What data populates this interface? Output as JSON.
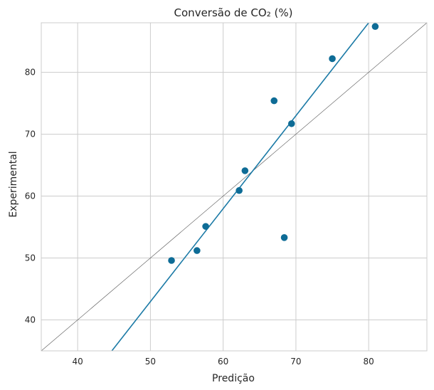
{
  "chart_data": {
    "type": "scatter",
    "title": "Conversão de CO₂ (%)",
    "xlabel": "Predição",
    "ylabel": "Experimental",
    "xlim": [
      35,
      88
    ],
    "ylim": [
      35,
      88
    ],
    "xticks": [
      40,
      50,
      60,
      70,
      80
    ],
    "yticks": [
      40,
      50,
      60,
      70,
      80
    ],
    "grid": true,
    "points": [
      {
        "x": 52.9,
        "y": 49.6
      },
      {
        "x": 56.4,
        "y": 51.2
      },
      {
        "x": 57.6,
        "y": 55.1
      },
      {
        "x": 62.2,
        "y": 60.9
      },
      {
        "x": 63.0,
        "y": 64.1
      },
      {
        "x": 67.0,
        "y": 75.4
      },
      {
        "x": 68.4,
        "y": 53.3
      },
      {
        "x": 69.4,
        "y": 71.7
      },
      {
        "x": 75.0,
        "y": 82.2
      },
      {
        "x": 80.9,
        "y": 87.4
      }
    ],
    "fit_line": {
      "x": [
        44.7,
        80.0
      ],
      "y": [
        35.0,
        88.0
      ]
    },
    "identity_line": {
      "x": [
        35,
        88
      ],
      "y": [
        35,
        88
      ]
    },
    "colors": {
      "points": "#0e6c96",
      "fit": "#1b7aa6",
      "identity": "#555555",
      "grid": "#cccccc"
    }
  }
}
